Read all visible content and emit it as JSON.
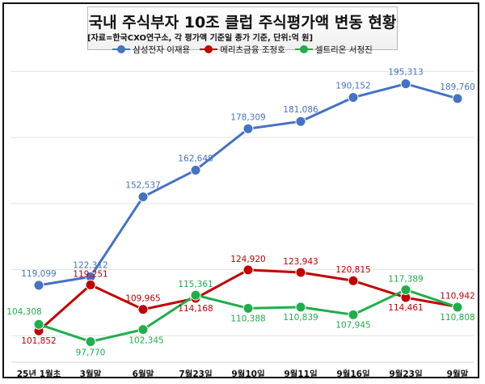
{
  "chart_data": {
    "type": "line",
    "title": "국내 주식부자 10조 클럽 주식평가액 변동 현황",
    "subtitle": "[자료=한국CXO연구소, 각 평가액 기준일 종가 기준, 단위:억 원]",
    "categories": [
      "25년 1월초",
      "3월말",
      "6월말",
      "7월23일",
      "9월10일",
      "9월11일",
      "9월16일",
      "9월23일",
      "9월말"
    ],
    "series": [
      {
        "name": "삼성전자 이재용",
        "color": "#4472c4",
        "values": [
          119099,
          122312,
          152537,
          162648,
          178309,
          181086,
          190152,
          195313,
          189760
        ],
        "labels": [
          "119,099",
          "122,312",
          "152,537",
          "162,648",
          "178,309",
          "181,086",
          "190,152",
          "195,313",
          "189,760"
        ]
      },
      {
        "name": "메리츠금융 조정호",
        "color": "#c00000",
        "values": [
          101852,
          119251,
          109965,
          114168,
          124920,
          123943,
          120815,
          114461,
          110942
        ],
        "labels": [
          "101,852",
          "119,251",
          "109,965",
          "114,168",
          "124,920",
          "123,943",
          "120,815",
          "114,461",
          "110,942"
        ]
      },
      {
        "name": "셀트리온 서정진",
        "color": "#1fae4b",
        "values": [
          104308,
          97770,
          102345,
          115361,
          110388,
          110839,
          107945,
          117389,
          110808
        ],
        "labels": [
          "104,308",
          "97,770",
          "102,345",
          "115,361",
          "110,388",
          "110,839",
          "107,945",
          "117,389",
          "110,808"
        ]
      }
    ],
    "ylim": [
      90000,
      205000
    ],
    "grid": "horizontal",
    "legend": "top"
  }
}
